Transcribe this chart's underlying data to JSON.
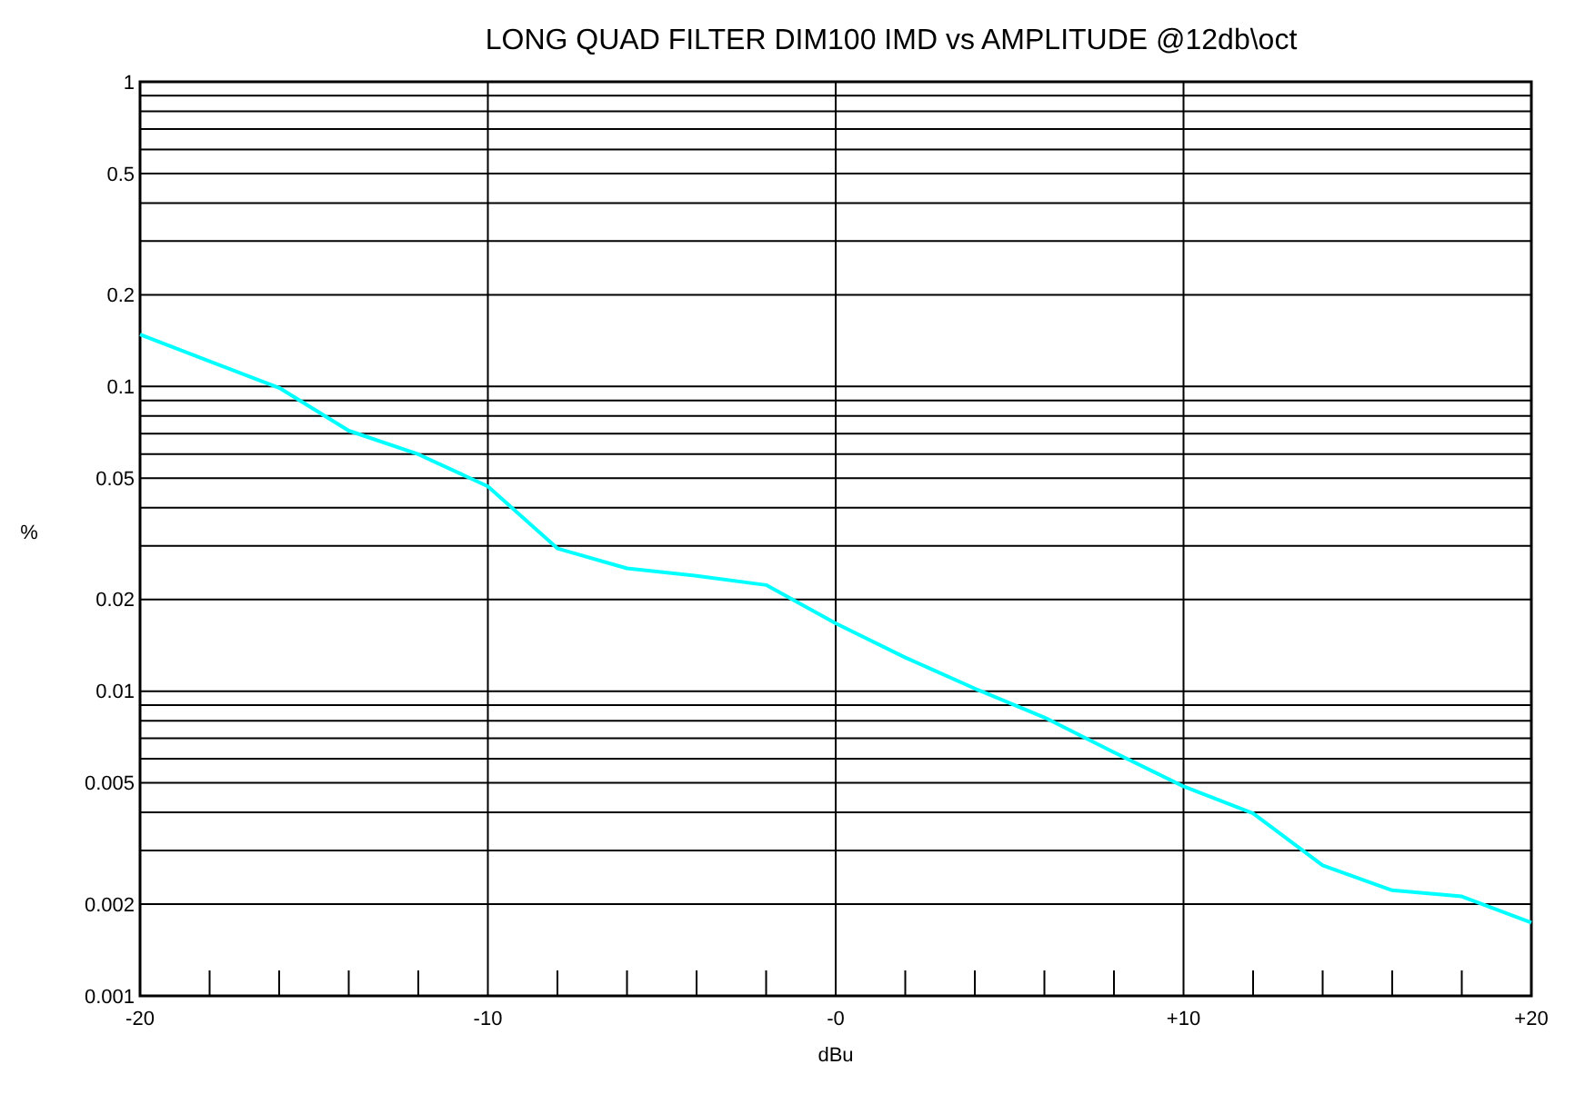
{
  "chart_data": {
    "type": "line",
    "title": "LONG QUAD FILTER DIM100 IMD vs AMPLITUDE @12db\\oct",
    "xlabel": "dBu",
    "ylabel": "%",
    "log": "y",
    "grid": true,
    "marker": "none",
    "line_style": "solid",
    "x": [
      -20,
      -18,
      -16,
      -14,
      -12,
      -10,
      -8,
      -6,
      -4,
      -2,
      0,
      2,
      4,
      6,
      8,
      10,
      12,
      14,
      16,
      18,
      20
    ],
    "series": [
      {
        "color": "#00ffff",
        "values": [
          0.148,
          0.121,
          0.099,
          0.0716,
          0.0599,
          0.047,
          0.0294,
          0.0253,
          0.0239,
          0.0223,
          0.0167,
          0.0129,
          0.0102,
          0.0082,
          0.0063,
          0.00487,
          0.00397,
          0.00268,
          0.00222,
          0.00212,
          0.00174
        ]
      }
    ],
    "xlim": [
      -20,
      20
    ],
    "xticks": [
      {
        "value": -20,
        "label": "-20"
      },
      {
        "value": -18,
        "label": null
      },
      {
        "value": -16,
        "label": null
      },
      {
        "value": -14,
        "label": null
      },
      {
        "value": -12,
        "label": null
      },
      {
        "value": -10,
        "label": "-10"
      },
      {
        "value": -8,
        "label": null
      },
      {
        "value": -6,
        "label": null
      },
      {
        "value": -4,
        "label": null
      },
      {
        "value": -2,
        "label": null
      },
      {
        "value": 0,
        "label": "-0"
      },
      {
        "value": 2,
        "label": null
      },
      {
        "value": 4,
        "label": null
      },
      {
        "value": 6,
        "label": null
      },
      {
        "value": 8,
        "label": null
      },
      {
        "value": 10,
        "label": "+10"
      },
      {
        "value": 12,
        "label": null
      },
      {
        "value": 14,
        "label": null
      },
      {
        "value": 16,
        "label": null
      },
      {
        "value": 18,
        "label": null
      },
      {
        "value": 20,
        "label": "+20"
      }
    ],
    "ylim": [
      0.001,
      1
    ],
    "yticks": [
      0.001,
      0.002,
      {
        "value": 0.003,
        "label": null
      },
      {
        "value": 0.004,
        "label": null
      },
      0.005,
      {
        "value": 0.006,
        "label": null
      },
      {
        "value": 0.007,
        "label": null
      },
      {
        "value": 0.008,
        "label": null
      },
      {
        "value": 0.009,
        "label": null
      },
      0.01,
      0.02,
      {
        "value": 0.03,
        "label": null
      },
      {
        "value": 0.04,
        "label": null
      },
      0.05,
      {
        "value": 0.06,
        "label": null
      },
      {
        "value": 0.07,
        "label": null
      },
      {
        "value": 0.08,
        "label": null
      },
      {
        "value": 0.09,
        "label": null
      },
      0.1,
      0.2,
      {
        "value": 0.3,
        "label": null
      },
      {
        "value": 0.4,
        "label": null
      },
      0.5,
      {
        "value": 0.6,
        "label": null
      },
      {
        "value": 0.7,
        "label": null
      },
      {
        "value": 0.8,
        "label": null
      },
      {
        "value": 0.9,
        "label": null
      },
      1
    ]
  }
}
